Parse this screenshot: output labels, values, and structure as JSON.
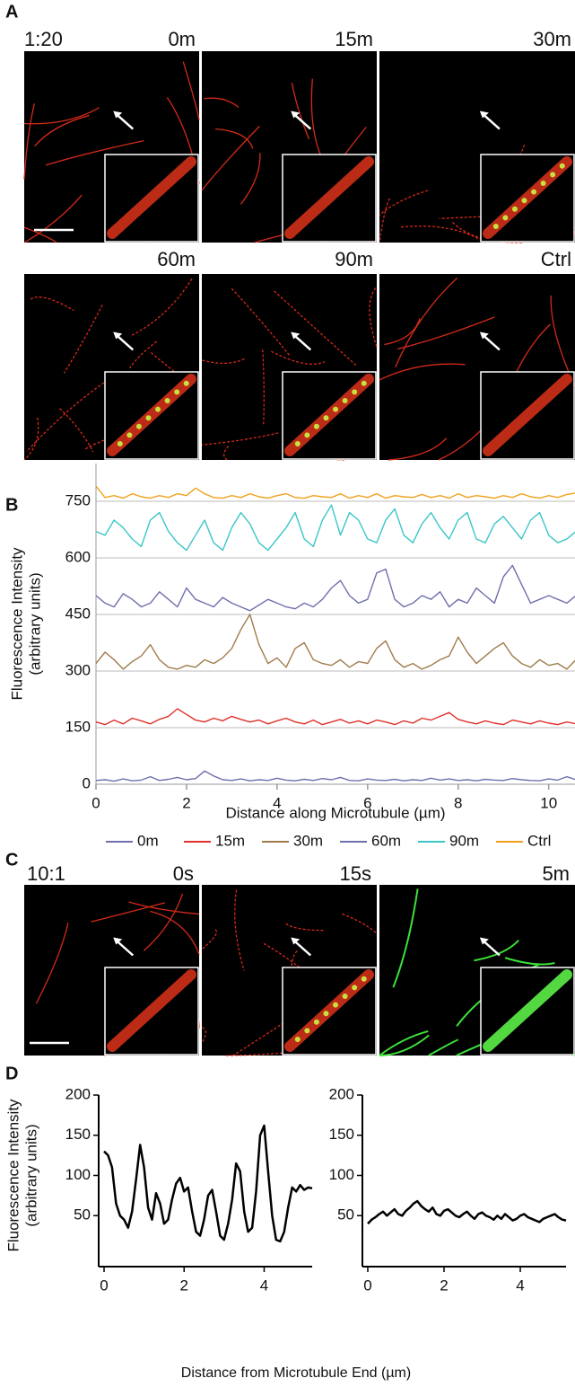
{
  "panel_labels": [
    "A",
    "B",
    "C",
    "D"
  ],
  "panel_a": {
    "ratio": "1:20",
    "times": [
      "0m",
      "15m",
      "30m",
      "60m",
      "90m",
      "Ctrl"
    ]
  },
  "panel_c": {
    "ratio": "10:1",
    "times": [
      "0s",
      "15s",
      "5m"
    ]
  },
  "panel_d": {
    "x_label": "Distance from Microtubule End (µm)"
  },
  "chart_data": [
    {
      "type": "line",
      "x_label": "Distance along Microtubule (µm)",
      "y_label": [
        "Fluorescence Intensity",
        "(arbitrary units)"
      ],
      "xlim": [
        0,
        10.6
      ],
      "ylim": [
        0,
        850
      ],
      "xticks": [
        0,
        2,
        4,
        6,
        8,
        10
      ],
      "yticks": [
        0,
        150,
        300,
        450,
        600,
        750
      ],
      "grid": true,
      "x": [
        0,
        0.2,
        0.4,
        0.6,
        0.8,
        1,
        1.2,
        1.4,
        1.6,
        1.8,
        2,
        2.2,
        2.4,
        2.6,
        2.8,
        3,
        3.2,
        3.4,
        3.6,
        3.8,
        4,
        4.2,
        4.4,
        4.6,
        4.8,
        5,
        5.2,
        5.4,
        5.6,
        5.8,
        6,
        6.2,
        6.4,
        6.6,
        6.8,
        7,
        7.2,
        7.4,
        7.6,
        7.8,
        8,
        8.2,
        8.4,
        8.6,
        8.8,
        9,
        9.2,
        9.4,
        9.6,
        9.8,
        10,
        10.2,
        10.4,
        10.6
      ],
      "series": [
        {
          "name": "0m",
          "color": "#6f6fae",
          "values": [
            10,
            12,
            8,
            14,
            9,
            11,
            20,
            10,
            13,
            18,
            12,
            15,
            35,
            22,
            12,
            10,
            14,
            9,
            12,
            10,
            16,
            11,
            9,
            13,
            10,
            15,
            12,
            18,
            10,
            9,
            14,
            11,
            10,
            13,
            9,
            12,
            10,
            16,
            11,
            14,
            10,
            12,
            9,
            13,
            11,
            10,
            15,
            12,
            10,
            9,
            14,
            11,
            20,
            12
          ]
        },
        {
          "name": "15m",
          "color": "#e0302a",
          "values": [
            165,
            158,
            170,
            160,
            175,
            168,
            160,
            172,
            180,
            200,
            185,
            170,
            165,
            175,
            168,
            180,
            172,
            165,
            170,
            160,
            168,
            175,
            165,
            160,
            170,
            158,
            165,
            172,
            162,
            168,
            160,
            170,
            165,
            158,
            168,
            162,
            175,
            170,
            180,
            190,
            172,
            165,
            160,
            168,
            162,
            158,
            170,
            165,
            160,
            168,
            162,
            158,
            165,
            160
          ]
        },
        {
          "name": "30m",
          "color": "#a07c4c",
          "values": [
            320,
            350,
            330,
            305,
            325,
            340,
            370,
            330,
            310,
            305,
            315,
            310,
            330,
            320,
            335,
            360,
            410,
            450,
            370,
            320,
            335,
            310,
            360,
            375,
            330,
            320,
            315,
            330,
            310,
            325,
            320,
            360,
            380,
            330,
            310,
            320,
            305,
            315,
            330,
            340,
            390,
            350,
            320,
            340,
            360,
            375,
            340,
            320,
            310,
            330,
            315,
            320,
            305,
            330
          ]
        },
        {
          "name": "60m",
          "color": "#6f6fae",
          "values": [
            500,
            480,
            470,
            505,
            490,
            470,
            480,
            510,
            490,
            470,
            520,
            490,
            480,
            470,
            495,
            480,
            470,
            460,
            475,
            490,
            480,
            470,
            465,
            480,
            470,
            490,
            520,
            540,
            500,
            480,
            490,
            560,
            570,
            490,
            470,
            480,
            500,
            490,
            510,
            470,
            490,
            480,
            520,
            500,
            480,
            550,
            580,
            530,
            480,
            490,
            500,
            490,
            480,
            500
          ]
        },
        {
          "name": "90m",
          "color": "#3cc6c6",
          "values": [
            670,
            660,
            700,
            680,
            650,
            630,
            700,
            720,
            670,
            640,
            620,
            660,
            700,
            640,
            620,
            680,
            720,
            690,
            640,
            620,
            650,
            680,
            720,
            650,
            630,
            700,
            740,
            660,
            720,
            700,
            650,
            640,
            700,
            730,
            660,
            640,
            690,
            720,
            680,
            650,
            700,
            720,
            650,
            640,
            690,
            710,
            680,
            650,
            700,
            720,
            660,
            640,
            650,
            670
          ]
        },
        {
          "name": "Ctrl",
          "color": "#f2a11e",
          "values": [
            790,
            760,
            765,
            758,
            770,
            762,
            758,
            765,
            760,
            770,
            765,
            785,
            770,
            760,
            758,
            765,
            760,
            770,
            762,
            758,
            765,
            770,
            760,
            758,
            765,
            762,
            760,
            770,
            758,
            765,
            760,
            770,
            758,
            765,
            762,
            760,
            768,
            760,
            765,
            758,
            770,
            760,
            765,
            762,
            758,
            765,
            760,
            770,
            762,
            758,
            765,
            760,
            768,
            772
          ]
        }
      ]
    },
    {
      "type": "line",
      "y_label": [
        "Fluorescence Intensity",
        "(arbitrary units)"
      ],
      "xlim": [
        0,
        5.2
      ],
      "ylim": [
        0,
        200
      ],
      "xticks": [
        0,
        2,
        4
      ],
      "yticks": [
        50,
        100,
        150,
        200
      ],
      "x": [
        0,
        0.1,
        0.2,
        0.3,
        0.4,
        0.5,
        0.6,
        0.7,
        0.8,
        0.9,
        1,
        1.1,
        1.2,
        1.3,
        1.4,
        1.5,
        1.6,
        1.7,
        1.8,
        1.9,
        2,
        2.1,
        2.2,
        2.3,
        2.4,
        2.5,
        2.6,
        2.7,
        2.8,
        2.9,
        3,
        3.1,
        3.2,
        3.3,
        3.4,
        3.5,
        3.6,
        3.7,
        3.8,
        3.9,
        4,
        4.1,
        4.2,
        4.3,
        4.4,
        4.5,
        4.6,
        4.7,
        4.8,
        4.9,
        5,
        5.1,
        5.2
      ],
      "series": [
        {
          "color": "#000000",
          "values": [
            130,
            125,
            110,
            65,
            50,
            45,
            35,
            55,
            95,
            138,
            110,
            60,
            45,
            78,
            65,
            40,
            45,
            70,
            90,
            97,
            80,
            85,
            55,
            30,
            25,
            45,
            75,
            82,
            55,
            25,
            20,
            40,
            70,
            115,
            105,
            55,
            30,
            35,
            80,
            150,
            162,
            105,
            50,
            20,
            18,
            30,
            60,
            85,
            80,
            88,
            82,
            85,
            84
          ]
        }
      ]
    },
    {
      "type": "line",
      "xlim": [
        0,
        5.2
      ],
      "ylim": [
        0,
        200
      ],
      "xticks": [
        0,
        2,
        4
      ],
      "yticks": [
        50,
        100,
        150,
        200
      ],
      "x": [
        0,
        0.1,
        0.2,
        0.3,
        0.4,
        0.5,
        0.6,
        0.7,
        0.8,
        0.9,
        1,
        1.1,
        1.2,
        1.3,
        1.4,
        1.5,
        1.6,
        1.7,
        1.8,
        1.9,
        2,
        2.1,
        2.2,
        2.3,
        2.4,
        2.5,
        2.6,
        2.7,
        2.8,
        2.9,
        3,
        3.1,
        3.2,
        3.3,
        3.4,
        3.5,
        3.6,
        3.7,
        3.8,
        3.9,
        4,
        4.1,
        4.2,
        4.3,
        4.4,
        4.5,
        4.6,
        4.7,
        4.8,
        4.9,
        5,
        5.1,
        5.2
      ],
      "series": [
        {
          "color": "#000000",
          "values": [
            40,
            45,
            48,
            52,
            55,
            50,
            54,
            58,
            52,
            50,
            56,
            60,
            65,
            68,
            62,
            58,
            55,
            60,
            52,
            50,
            56,
            58,
            54,
            50,
            48,
            52,
            55,
            50,
            46,
            52,
            54,
            50,
            48,
            45,
            50,
            46,
            52,
            48,
            44,
            46,
            50,
            52,
            48,
            46,
            44,
            42,
            46,
            48,
            50,
            52,
            48,
            45,
            44
          ]
        }
      ]
    }
  ]
}
